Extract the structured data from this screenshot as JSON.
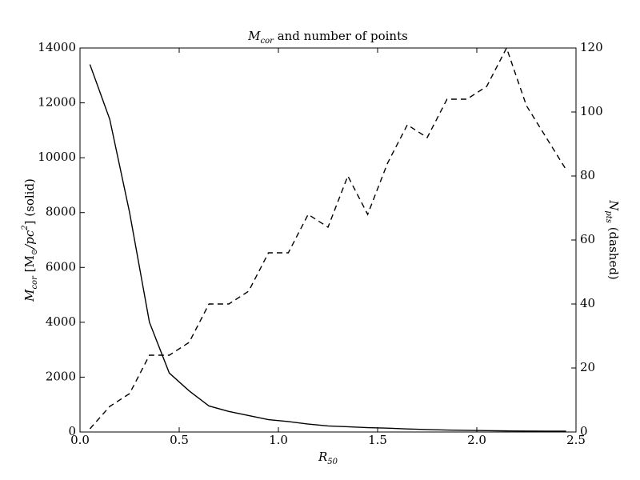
{
  "chart_data": {
    "type": "line",
    "title": [
      "M",
      "cor",
      " and number of points"
    ],
    "xlabel": [
      "R",
      "50"
    ],
    "ylabel": [
      "M",
      "cor",
      " [M",
      "⊙",
      "/pc",
      "2",
      "] (solid)"
    ],
    "y2label": [
      "N",
      "pts",
      " (dashed)"
    ],
    "x": [
      0.05,
      0.15,
      0.25,
      0.35,
      0.45,
      0.55,
      0.65,
      0.75,
      0.85,
      0.95,
      1.05,
      1.15,
      1.25,
      1.35,
      1.45,
      1.55,
      1.65,
      1.75,
      1.85,
      1.95,
      2.05,
      2.15,
      2.25,
      2.35,
      2.45
    ],
    "series": [
      {
        "color": "#000000",
        "linestyle": "solid",
        "axis": "y",
        "values": [
          13400,
          11400,
          8000,
          4000,
          2150,
          1500,
          950,
          750,
          600,
          450,
          380,
          290,
          220,
          190,
          160,
          140,
          110,
          90,
          70,
          60,
          50,
          40,
          35,
          30,
          30
        ]
      },
      {
        "color": "#000000",
        "linestyle": "dashed",
        "axis": "y2",
        "values": [
          1,
          8,
          12,
          24,
          24,
          28,
          40,
          40,
          44,
          56,
          56,
          68,
          64,
          80,
          68,
          84,
          96,
          92,
          104,
          104,
          108,
          120,
          102,
          92,
          82
        ]
      }
    ],
    "xlim": [
      0,
      2.5
    ],
    "xticks": [
      {
        "value": 0,
        "label": "0.0"
      },
      0.5,
      {
        "value": 1,
        "label": "1.0"
      },
      1.5,
      {
        "value": 2,
        "label": "2.0"
      },
      2.5
    ],
    "ylim": [
      0,
      14000
    ],
    "yticks": [
      0,
      2000,
      4000,
      6000,
      8000,
      10000,
      12000,
      14000
    ],
    "y2lim": [
      0,
      120
    ],
    "y2ticks": [
      0,
      20,
      40,
      60,
      80,
      100,
      120
    ],
    "grid": false
  }
}
